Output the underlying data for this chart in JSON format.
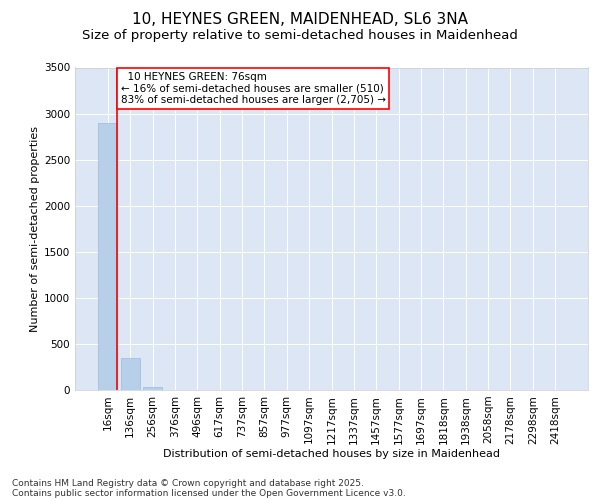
{
  "title_line1": "10, HEYNES GREEN, MAIDENHEAD, SL6 3NA",
  "title_line2": "Size of property relative to semi-detached houses in Maidenhead",
  "xlabel": "Distribution of semi-detached houses by size in Maidenhead",
  "ylabel": "Number of semi-detached properties",
  "background_color": "#dce6f5",
  "bar_color": "#b8cfea",
  "bar_edge_color": "#99bbdd",
  "annotation_line_color": "red",
  "categories": [
    "16sqm",
    "136sqm",
    "256sqm",
    "376sqm",
    "496sqm",
    "617sqm",
    "737sqm",
    "857sqm",
    "977sqm",
    "1097sqm",
    "1217sqm",
    "1337sqm",
    "1457sqm",
    "1577sqm",
    "1697sqm",
    "1818sqm",
    "1938sqm",
    "2058sqm",
    "2178sqm",
    "2298sqm",
    "2418sqm"
  ],
  "values": [
    2900,
    350,
    35,
    5,
    2,
    1,
    1,
    0,
    0,
    0,
    0,
    0,
    0,
    0,
    0,
    0,
    0,
    0,
    0,
    0,
    0
  ],
  "ylim": [
    0,
    3500
  ],
  "yticks": [
    0,
    500,
    1000,
    1500,
    2000,
    2500,
    3000,
    3500
  ],
  "property_bin_index": 0,
  "annotation_text_line1": "  10 HEYNES GREEN: 76sqm",
  "annotation_text_line2": "← 16% of semi-detached houses are smaller (510)",
  "annotation_text_line3": "83% of semi-detached houses are larger (2,705) →",
  "footer_line1": "Contains HM Land Registry data © Crown copyright and database right 2025.",
  "footer_line2": "Contains public sector information licensed under the Open Government Licence v3.0.",
  "title_fontsize": 11,
  "subtitle_fontsize": 9.5,
  "axis_label_fontsize": 8,
  "tick_fontsize": 7.5,
  "annotation_fontsize": 7.5,
  "footer_fontsize": 6.5
}
